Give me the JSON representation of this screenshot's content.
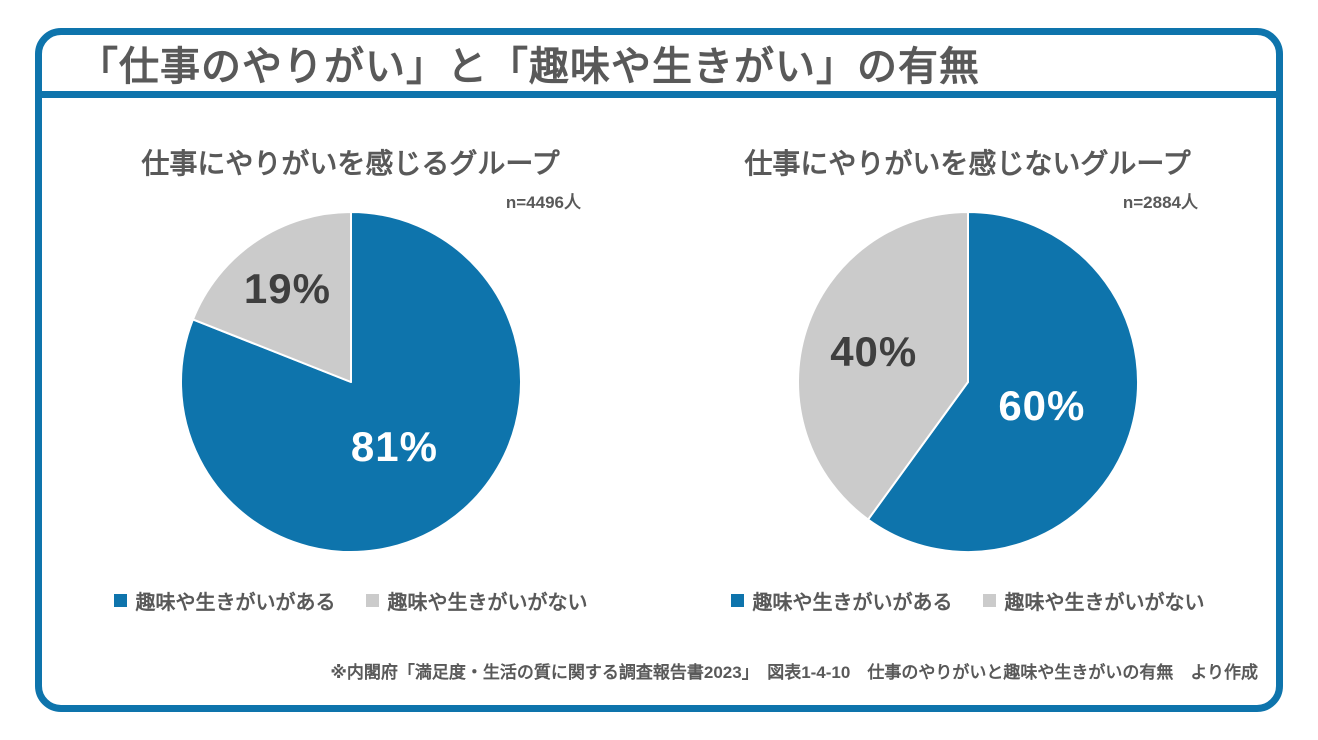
{
  "title": "「仕事のやりがい」と「趣味や生きがい」の有無",
  "colors": {
    "accent_blue": "#0e74ac",
    "slice_gray": "#cbcbcb",
    "text_gray": "#595959",
    "label_dark": "#3f3f3f",
    "label_white": "#ffffff"
  },
  "chart_data": [
    {
      "type": "pie",
      "title": "仕事にやりがいを感じるグループ",
      "n_label": "n=4496人",
      "start_angle": 0,
      "direction": "clockwise",
      "slices": [
        {
          "label": "趣味や生きがいがある",
          "value": 81,
          "text": "81%",
          "color": "#0e74ac",
          "text_color": "#ffffff",
          "label_r": 0.46
        },
        {
          "label": "趣味や生きがいがない",
          "value": 19,
          "text": "19%",
          "color": "#cbcbcb",
          "text_color": "#3f3f3f",
          "label_r": 0.66
        }
      ],
      "legend": [
        "趣味や生きがいがある",
        "趣味や生きがいがない"
      ]
    },
    {
      "type": "pie",
      "title": "仕事にやりがいを感じないグループ",
      "n_label": "n=2884人",
      "start_angle": 0,
      "direction": "clockwise",
      "slices": [
        {
          "label": "趣味や生きがいがある",
          "value": 60,
          "text": "60%",
          "color": "#0e74ac",
          "text_color": "#ffffff",
          "label_r": 0.46
        },
        {
          "label": "趣味や生きがいがない",
          "value": 40,
          "text": "40%",
          "color": "#cbcbcb",
          "text_color": "#3f3f3f",
          "label_r": 0.58
        }
      ],
      "legend": [
        "趣味や生きがいがある",
        "趣味や生きがいがない"
      ]
    }
  ],
  "footer": "※内閣府「満足度・生活の質に関する調査報告書2023」　図表1-4-10　仕事のやりがいと趣味や生きがいの有無　より作成"
}
